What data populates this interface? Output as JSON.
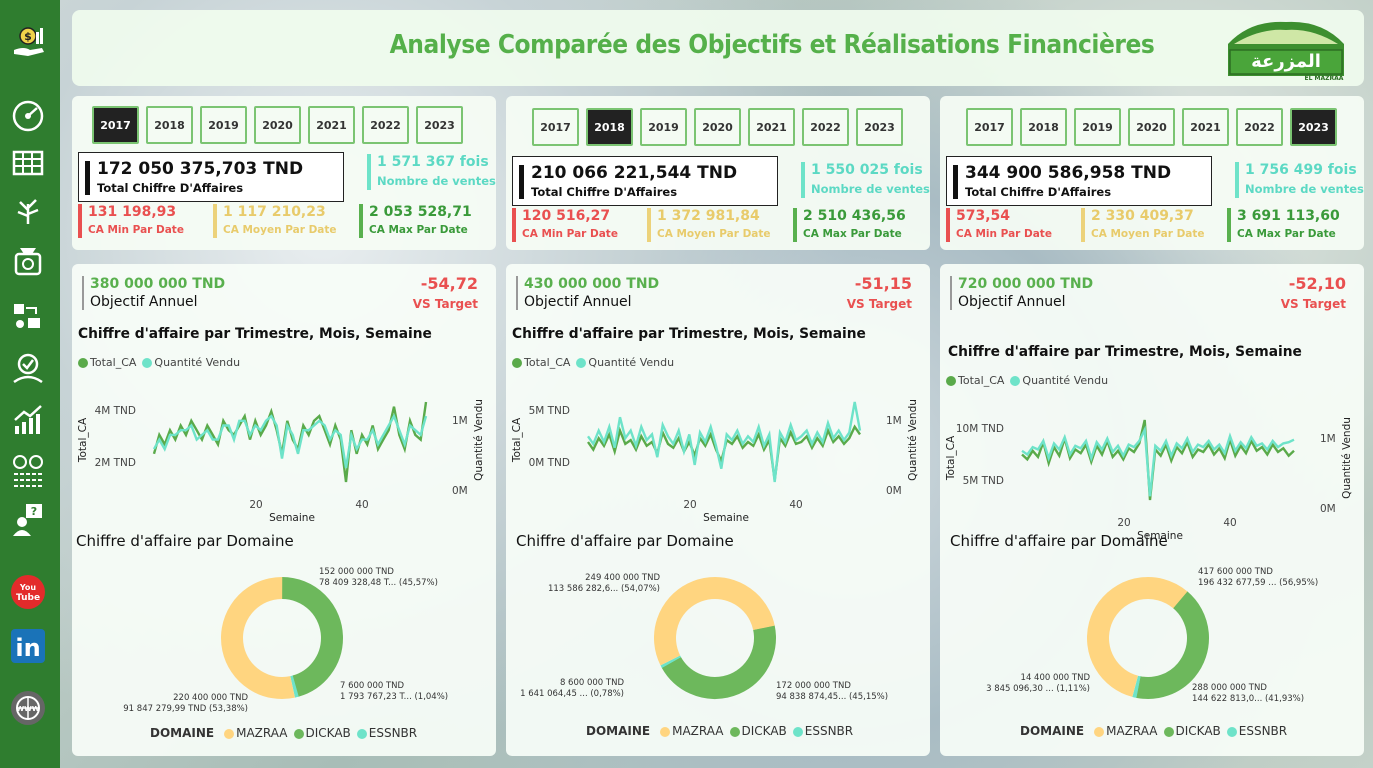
{
  "title": "Analyse Comparée des Objectifs et Réalisations Financières",
  "logo": {
    "text_ar": "المزرعة",
    "text_en": "EL MAZRAA"
  },
  "sidebar": {
    "icons": [
      "money-hand-icon",
      "gauge-icon",
      "table-icon",
      "tree-icon",
      "scale-icon",
      "delivery-icon",
      "check-gauge-icon",
      "growth-chart-icon",
      "compare-icon",
      "user-question-icon",
      "youtube-icon",
      "linkedin-icon",
      "www-icon"
    ],
    "youtube_label": "You Tube",
    "linkedin_label": "in",
    "www_label": "WWW"
  },
  "years": [
    "2017",
    "2018",
    "2019",
    "2020",
    "2021",
    "2022",
    "2023"
  ],
  "labels": {
    "total_ca": "Total Chiffre D'Affaires",
    "nb_ventes": "Nombre de ventes",
    "ca_min": "CA Min Par Date",
    "ca_moy": "CA Moyen Par Date",
    "ca_max": "CA Max Par Date",
    "objectif": "Objectif Annuel",
    "vs_target": "VS Target",
    "line_title": "Chiffre d'affaire par Trimestre, Mois, Semaine",
    "legend_ca": "Total_CA",
    "legend_qty": "Quantité Vendu",
    "y_left": "Total_CA",
    "y_right": "Quantité Vendu",
    "x_axis": "Semaine",
    "donut_title": "Chiffre d'affaire par Domaine",
    "domaine": "DOMAINE",
    "mazraa": "MAZRAA",
    "dickab": "DICKAB",
    "essnbr": "ESSNBR"
  },
  "colors": {
    "ca": "#5aaa4a",
    "qty": "#6ee3c9",
    "mazraa": "#ffd580",
    "dickab": "#6db85c",
    "essnbr": "#6ee3c9",
    "red": "#e95050"
  },
  "panels": [
    {
      "selected_year": "2017",
      "total": "172 050 375,703 TND",
      "ventes": "1 571 367 fois",
      "ca_min": "131 198,93",
      "ca_moy": "1 117 210,23",
      "ca_max": "2 053 528,71",
      "objectif": "380 000 000 TND",
      "vs": "-54,72",
      "line": {
        "yticks_left": [
          "4M TND",
          "2M TND"
        ],
        "yticks_right": [
          "1M",
          "0M"
        ],
        "xticks": [
          "20",
          "40"
        ],
        "ca": [
          3.2,
          3.6,
          3.4,
          3.7,
          3.5,
          3.8,
          3.6,
          3.9,
          3.7,
          3.5,
          3.8,
          3.6,
          3.4,
          3.9,
          3.7,
          3.6,
          3.8,
          4.0,
          3.5,
          3.9,
          3.6,
          3.8,
          4.1,
          3.7,
          3.2,
          3.9,
          3.5,
          3.3,
          3.8,
          3.6,
          3.9,
          4.0,
          3.7,
          3.4,
          3.8,
          3.5,
          2.6,
          3.7,
          3.2,
          3.6,
          3.4,
          3.8,
          3.3,
          3.5,
          3.7,
          4.2,
          3.6,
          3.3,
          3.9,
          3.6,
          3.5,
          4.3
        ],
        "qty": [
          3.3,
          3.5,
          3.3,
          3.6,
          3.6,
          3.7,
          3.7,
          3.8,
          3.5,
          3.6,
          3.7,
          3.5,
          3.5,
          3.8,
          3.8,
          3.5,
          3.9,
          3.9,
          3.6,
          3.8,
          3.7,
          3.9,
          4.0,
          3.8,
          3.1,
          3.8,
          3.6,
          3.2,
          3.7,
          3.7,
          3.8,
          3.9,
          3.8,
          3.5,
          3.7,
          3.6,
          2.9,
          3.6,
          3.3,
          3.5,
          3.5,
          3.7,
          3.4,
          3.6,
          3.8,
          4.0,
          3.7,
          3.4,
          3.8,
          3.7,
          3.6,
          4.0
        ]
      },
      "donut": {
        "mazraa": 53.38,
        "dickab": 45.57,
        "essnbr": 1.04,
        "label_dickab": [
          "152 000 000 TND",
          "78 409 328,48 T... (45,57%)"
        ],
        "label_essnbr": [
          "7 600 000 TND",
          "1 793 767,23 T... (1,04%)"
        ],
        "label_mazraa": [
          "220 400 000 TND",
          "91 847 279,99 TND (53,38%)"
        ]
      }
    },
    {
      "selected_year": "2018",
      "total": "210 066 221,544 TND",
      "ventes": "1 550 025 fois",
      "ca_min": "120 516,27",
      "ca_moy": "1 372 981,84",
      "ca_max": "2 510 436,56",
      "objectif": "430 000 000 TND",
      "vs": "-51,15",
      "line": {
        "yticks_left": [
          "5M TND",
          "0M TND"
        ],
        "yticks_right": [
          "1M",
          "0M"
        ],
        "xticks": [
          "20",
          "40"
        ],
        "ca": [
          4.0,
          3.6,
          4.2,
          3.8,
          4.4,
          3.5,
          4.6,
          3.9,
          4.1,
          3.6,
          4.3,
          3.8,
          4.0,
          3.4,
          4.5,
          3.9,
          3.7,
          4.2,
          3.5,
          4.0,
          3.3,
          4.2,
          3.8,
          4.4,
          3.6,
          3.0,
          4.1,
          3.9,
          4.3,
          3.7,
          4.0,
          3.8,
          4.4,
          3.6,
          4.1,
          2.0,
          4.2,
          3.8,
          4.5,
          3.9,
          4.0,
          4.3,
          3.7,
          4.2,
          3.8,
          4.6,
          4.0,
          4.3,
          3.9,
          4.2,
          4.8,
          4.4
        ],
        "qty": [
          4.3,
          3.9,
          4.6,
          4.0,
          4.8,
          3.7,
          5.3,
          4.2,
          4.6,
          3.8,
          4.8,
          4.1,
          4.4,
          3.2,
          4.9,
          4.3,
          3.9,
          4.6,
          3.5,
          4.4,
          2.8,
          4.5,
          4.0,
          4.8,
          3.8,
          2.6,
          4.4,
          4.1,
          4.6,
          3.9,
          4.3,
          4.0,
          4.8,
          3.8,
          4.4,
          1.9,
          4.5,
          4.0,
          4.9,
          4.1,
          4.3,
          4.6,
          3.9,
          4.5,
          4.0,
          5.0,
          4.2,
          4.6,
          4.1,
          4.5,
          6.1,
          4.6
        ]
      },
      "donut": {
        "mazraa": 54.07,
        "dickab": 45.15,
        "essnbr": 0.78,
        "label_mazraa": [
          "249 400 000 TND",
          "113 586 282,6... (54,07%)"
        ],
        "label_essnbr": [
          "8 600 000 TND",
          "1 641 064,45 ... (0,78%)"
        ],
        "label_dickab": [
          "172 000 000 TND",
          "94 838 874,45... (45,15%)"
        ]
      }
    },
    {
      "selected_year": "2023",
      "total": "344 900 586,958 TND",
      "ventes": "1 756 499 fois",
      "ca_min": "573,54",
      "ca_moy": "2 330 409,37",
      "ca_max": "3 691 113,60",
      "objectif": "720 000 000 TND",
      "vs": "-52,10",
      "line": {
        "yticks_left": [
          "10M TND",
          "5M TND"
        ],
        "yticks_right": [
          "1M",
          "0M"
        ],
        "xticks": [
          "20",
          "40"
        ],
        "ca": [
          7.2,
          6.8,
          7.5,
          7.0,
          8.2,
          6.5,
          7.8,
          7.1,
          8.5,
          6.9,
          7.6,
          7.3,
          8.0,
          6.6,
          7.9,
          7.2,
          8.3,
          7.0,
          7.5,
          6.8,
          7.7,
          7.4,
          8.1,
          10.0,
          3.5,
          7.6,
          7.1,
          8.0,
          6.7,
          7.8,
          7.3,
          8.2,
          7.0,
          7.6,
          7.4,
          8.0,
          7.2,
          7.7,
          6.9,
          8.4,
          7.1,
          7.9,
          7.3,
          8.3,
          7.5,
          7.8,
          7.2,
          8.0,
          7.4,
          7.7,
          7.1,
          7.5
        ],
        "qty": [
          7.5,
          7.2,
          7.8,
          7.6,
          8.3,
          6.9,
          8.1,
          7.6,
          8.6,
          7.2,
          7.9,
          7.7,
          8.3,
          6.9,
          8.2,
          7.6,
          8.5,
          7.4,
          7.9,
          7.1,
          8.0,
          7.8,
          8.3,
          9.2,
          3.8,
          7.9,
          7.5,
          8.3,
          7.1,
          8.1,
          7.7,
          8.5,
          7.4,
          8.0,
          7.8,
          8.3,
          7.6,
          8.0,
          7.3,
          8.7,
          7.5,
          8.2,
          7.7,
          8.6,
          7.9,
          8.1,
          7.6,
          8.3,
          7.8,
          8.1,
          8.2,
          8.4
        ]
      },
      "donut": {
        "mazraa": 56.95,
        "dickab": 41.93,
        "essnbr": 1.11,
        "label_mazraa": [
          "417 600 000 TND",
          "196 432 677,59 ... (56,95%)"
        ],
        "label_essnbr": [
          "14 400 000 TND",
          "3 845 096,30 ... (1,11%)"
        ],
        "label_dickab": [
          "288 000 000 TND",
          "144 622 813,0... (41,93%)"
        ]
      }
    }
  ]
}
